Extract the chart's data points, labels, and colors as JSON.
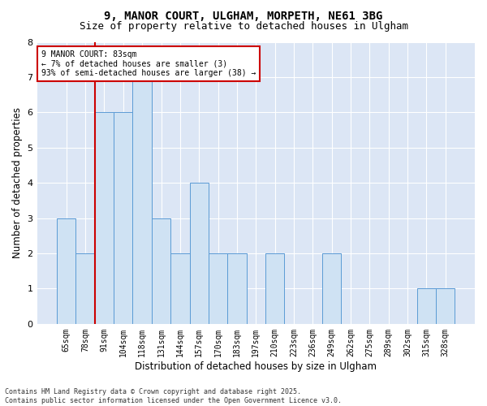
{
  "title_line1": "9, MANOR COURT, ULGHAM, MORPETH, NE61 3BG",
  "title_line2": "Size of property relative to detached houses in Ulgham",
  "xlabel": "Distribution of detached houses by size in Ulgham",
  "ylabel": "Number of detached properties",
  "categories": [
    "65sqm",
    "78sqm",
    "91sqm",
    "104sqm",
    "118sqm",
    "131sqm",
    "144sqm",
    "157sqm",
    "170sqm",
    "183sqm",
    "197sqm",
    "210sqm",
    "223sqm",
    "236sqm",
    "249sqm",
    "262sqm",
    "275sqm",
    "289sqm",
    "302sqm",
    "315sqm",
    "328sqm"
  ],
  "values": [
    3,
    2,
    6,
    6,
    7,
    3,
    2,
    4,
    2,
    2,
    0,
    2,
    0,
    0,
    2,
    0,
    0,
    0,
    0,
    1,
    1
  ],
  "bar_color": "#cfe2f3",
  "bar_edge_color": "#5b9bd5",
  "marker_index": 1,
  "marker_color": "#cc0000",
  "annotation_text": "9 MANOR COURT: 83sqm\n← 7% of detached houses are smaller (3)\n93% of semi-detached houses are larger (38) →",
  "annotation_box_color": "#ffffff",
  "annotation_box_edge": "#cc0000",
  "ylim": [
    0,
    8
  ],
  "yticks": [
    0,
    1,
    2,
    3,
    4,
    5,
    6,
    7,
    8
  ],
  "plot_bg_color": "#dce6f5",
  "fig_bg_color": "#ffffff",
  "footer_text": "Contains HM Land Registry data © Crown copyright and database right 2025.\nContains public sector information licensed under the Open Government Licence v3.0.",
  "title_fontsize": 10,
  "subtitle_fontsize": 9,
  "tick_fontsize": 7,
  "axis_label_fontsize": 8.5,
  "annotation_fontsize": 7,
  "footer_fontsize": 6
}
